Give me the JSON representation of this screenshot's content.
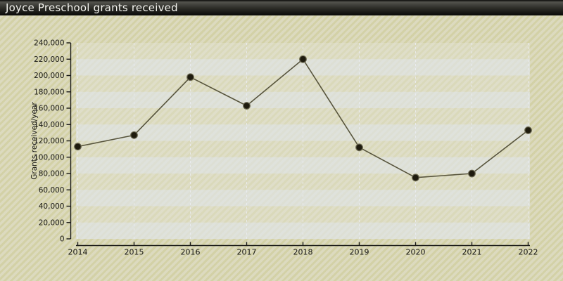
{
  "window": {
    "title": "Joyce Preschool grants received"
  },
  "chart_data": {
    "type": "line",
    "title": "Joyce Preschool grants received",
    "xlabel": "",
    "ylabel": "Grants received/year",
    "x": [
      2014,
      2015,
      2016,
      2017,
      2018,
      2019,
      2020,
      2021,
      2022
    ],
    "series": [
      {
        "name": "Grants received/year",
        "values": [
          113000,
          127000,
          198000,
          163000,
          220000,
          112000,
          75000,
          80000,
          133000
        ]
      }
    ],
    "ylim": [
      0,
      240000
    ],
    "ytick_step": 20000,
    "ytick_labels": [
      "0",
      "20,000",
      "40,000",
      "60,000",
      "80,000",
      "100,000",
      "120,000",
      "140,000",
      "160,000",
      "180,000",
      "200,000",
      "220,000",
      "240,000"
    ],
    "grid": {
      "horizontal_bands": true,
      "vertical_dashed_lines": true
    },
    "legend": "none",
    "marker": "filled-circle"
  },
  "colors": {
    "title_text": "#f4f4ef",
    "title_bar_top": "#52524c",
    "title_bar_bottom": "#0a0a08",
    "page_stripe_dark": "#d3d1a6",
    "page_stripe_light": "#dcdabf",
    "plot_base": "rgba(240,240,236,0.30)",
    "band_light": "rgba(222,227,233,0.55)",
    "band_dark": "rgba(214,211,182,0.12)",
    "gridline": "#eceef4",
    "axis": "#1b1b18",
    "tick_label": "#161613",
    "line": "#57543c",
    "marker_fill": "#1e1b0e",
    "marker_stroke": "#6a6750"
  }
}
